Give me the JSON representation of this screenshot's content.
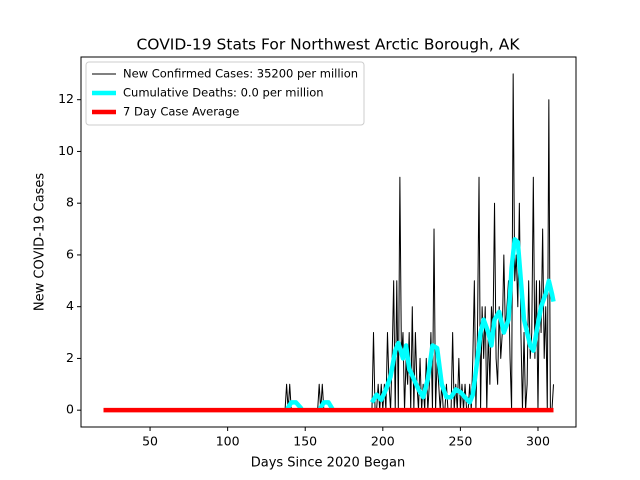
{
  "chart_data": {
    "type": "line",
    "title": "COVID-19 Stats For Northwest Arctic Borough, AK",
    "x_label": "Days Since 2020 Began",
    "y_label": "New COVID-19 Cases",
    "xlim": [
      5.5,
      324.5
    ],
    "ylim": [
      -0.65,
      13.65
    ],
    "xticks": [
      50,
      100,
      150,
      200,
      250,
      300
    ],
    "yticks": [
      0,
      2,
      4,
      6,
      8,
      10,
      12
    ],
    "legend": "upper left",
    "series": [
      {
        "name": "New Confirmed Cases: 35200 per million",
        "color": "#000000",
        "x": [
          20,
          137,
          138,
          139,
          140,
          141,
          158,
          159,
          160,
          161,
          162,
          193,
          194,
          195,
          196,
          197,
          198,
          199,
          200,
          201,
          202,
          203,
          204,
          205,
          206,
          207,
          208,
          209,
          210,
          211,
          212,
          213,
          214,
          215,
          216,
          217,
          218,
          219,
          220,
          221,
          222,
          223,
          224,
          225,
          226,
          227,
          228,
          229,
          230,
          231,
          232,
          233,
          234,
          235,
          236,
          237,
          238,
          239,
          240,
          241,
          242,
          243,
          244,
          245,
          246,
          247,
          248,
          249,
          250,
          251,
          252,
          253,
          254,
          255,
          256,
          257,
          258,
          259,
          260,
          261,
          262,
          263,
          264,
          265,
          266,
          267,
          268,
          269,
          270,
          271,
          272,
          273,
          274,
          275,
          276,
          277,
          278,
          279,
          280,
          281,
          282,
          283,
          284,
          285,
          286,
          287,
          288,
          289,
          290,
          291,
          292,
          293,
          294,
          295,
          296,
          297,
          298,
          299,
          300,
          301,
          302,
          303,
          304,
          305,
          306,
          307,
          308,
          309,
          310
        ],
        "values": [
          0,
          0,
          1,
          0,
          1,
          0,
          0,
          1,
          0,
          1,
          0,
          0,
          3,
          0,
          0,
          1,
          0,
          1,
          0,
          1,
          0,
          3,
          1,
          0,
          2,
          5,
          0,
          5,
          0,
          9,
          2,
          3,
          0,
          2,
          1,
          3,
          0,
          4,
          0,
          3,
          1,
          0,
          2,
          0,
          1,
          0,
          2,
          0,
          1,
          3,
          0,
          7,
          0,
          2,
          1,
          0,
          1,
          0,
          0,
          1,
          0,
          0,
          0,
          3,
          0,
          1,
          0,
          2,
          0,
          1,
          0,
          1,
          0,
          0,
          1,
          0,
          2,
          5,
          0,
          3,
          9,
          0,
          4,
          2,
          4,
          0,
          3,
          1,
          4,
          3,
          8,
          2,
          1,
          4,
          2,
          3,
          6,
          3,
          4,
          5,
          2,
          0,
          13,
          5,
          6,
          4,
          8,
          3,
          0,
          3,
          0,
          1,
          5,
          2,
          3,
          9,
          2,
          5,
          0,
          5,
          3,
          7,
          2,
          4,
          0,
          12,
          0,
          0,
          1
        ]
      },
      {
        "name": "Cumulative Deaths: 0.0 per million",
        "color": "#00ffff",
        "x": [
          138,
          141,
          144,
          147,
          148,
          150,
          159,
          162,
          165,
          168,
          170,
          193,
          196,
          199,
          202,
          205,
          208,
          210,
          213,
          215,
          217,
          220,
          223,
          226,
          229,
          232,
          235,
          238,
          241,
          244,
          247,
          250,
          253,
          256,
          258,
          260,
          263,
          265,
          268,
          270,
          272,
          275,
          278,
          281,
          283,
          285,
          287,
          289,
          291,
          293,
          295,
          297,
          299,
          302,
          305,
          307,
          309,
          310
        ],
        "values": [
          0,
          0.3,
          0.3,
          0.1,
          0,
          null,
          0,
          0.3,
          0.3,
          0,
          null,
          0.3,
          0.6,
          0.4,
          0.8,
          1.3,
          2.3,
          2.6,
          2.0,
          2.5,
          1.6,
          1.2,
          0.8,
          0.5,
          1.2,
          2.5,
          2.4,
          1.0,
          0.5,
          0.5,
          0.8,
          0.7,
          0.5,
          0.3,
          0.6,
          1.5,
          3.0,
          3.5,
          3.0,
          2.5,
          3.5,
          3.8,
          3.0,
          3.5,
          5.5,
          6.6,
          6.5,
          5.0,
          3.5,
          3.0,
          2.5,
          2.3,
          3.0,
          4.0,
          4.5,
          5.0,
          4.5,
          4.2
        ]
      },
      {
        "name": "7 Day Case Average",
        "color": "#ff0000",
        "x": [
          20,
          310
        ],
        "values": [
          0,
          0
        ]
      }
    ]
  }
}
